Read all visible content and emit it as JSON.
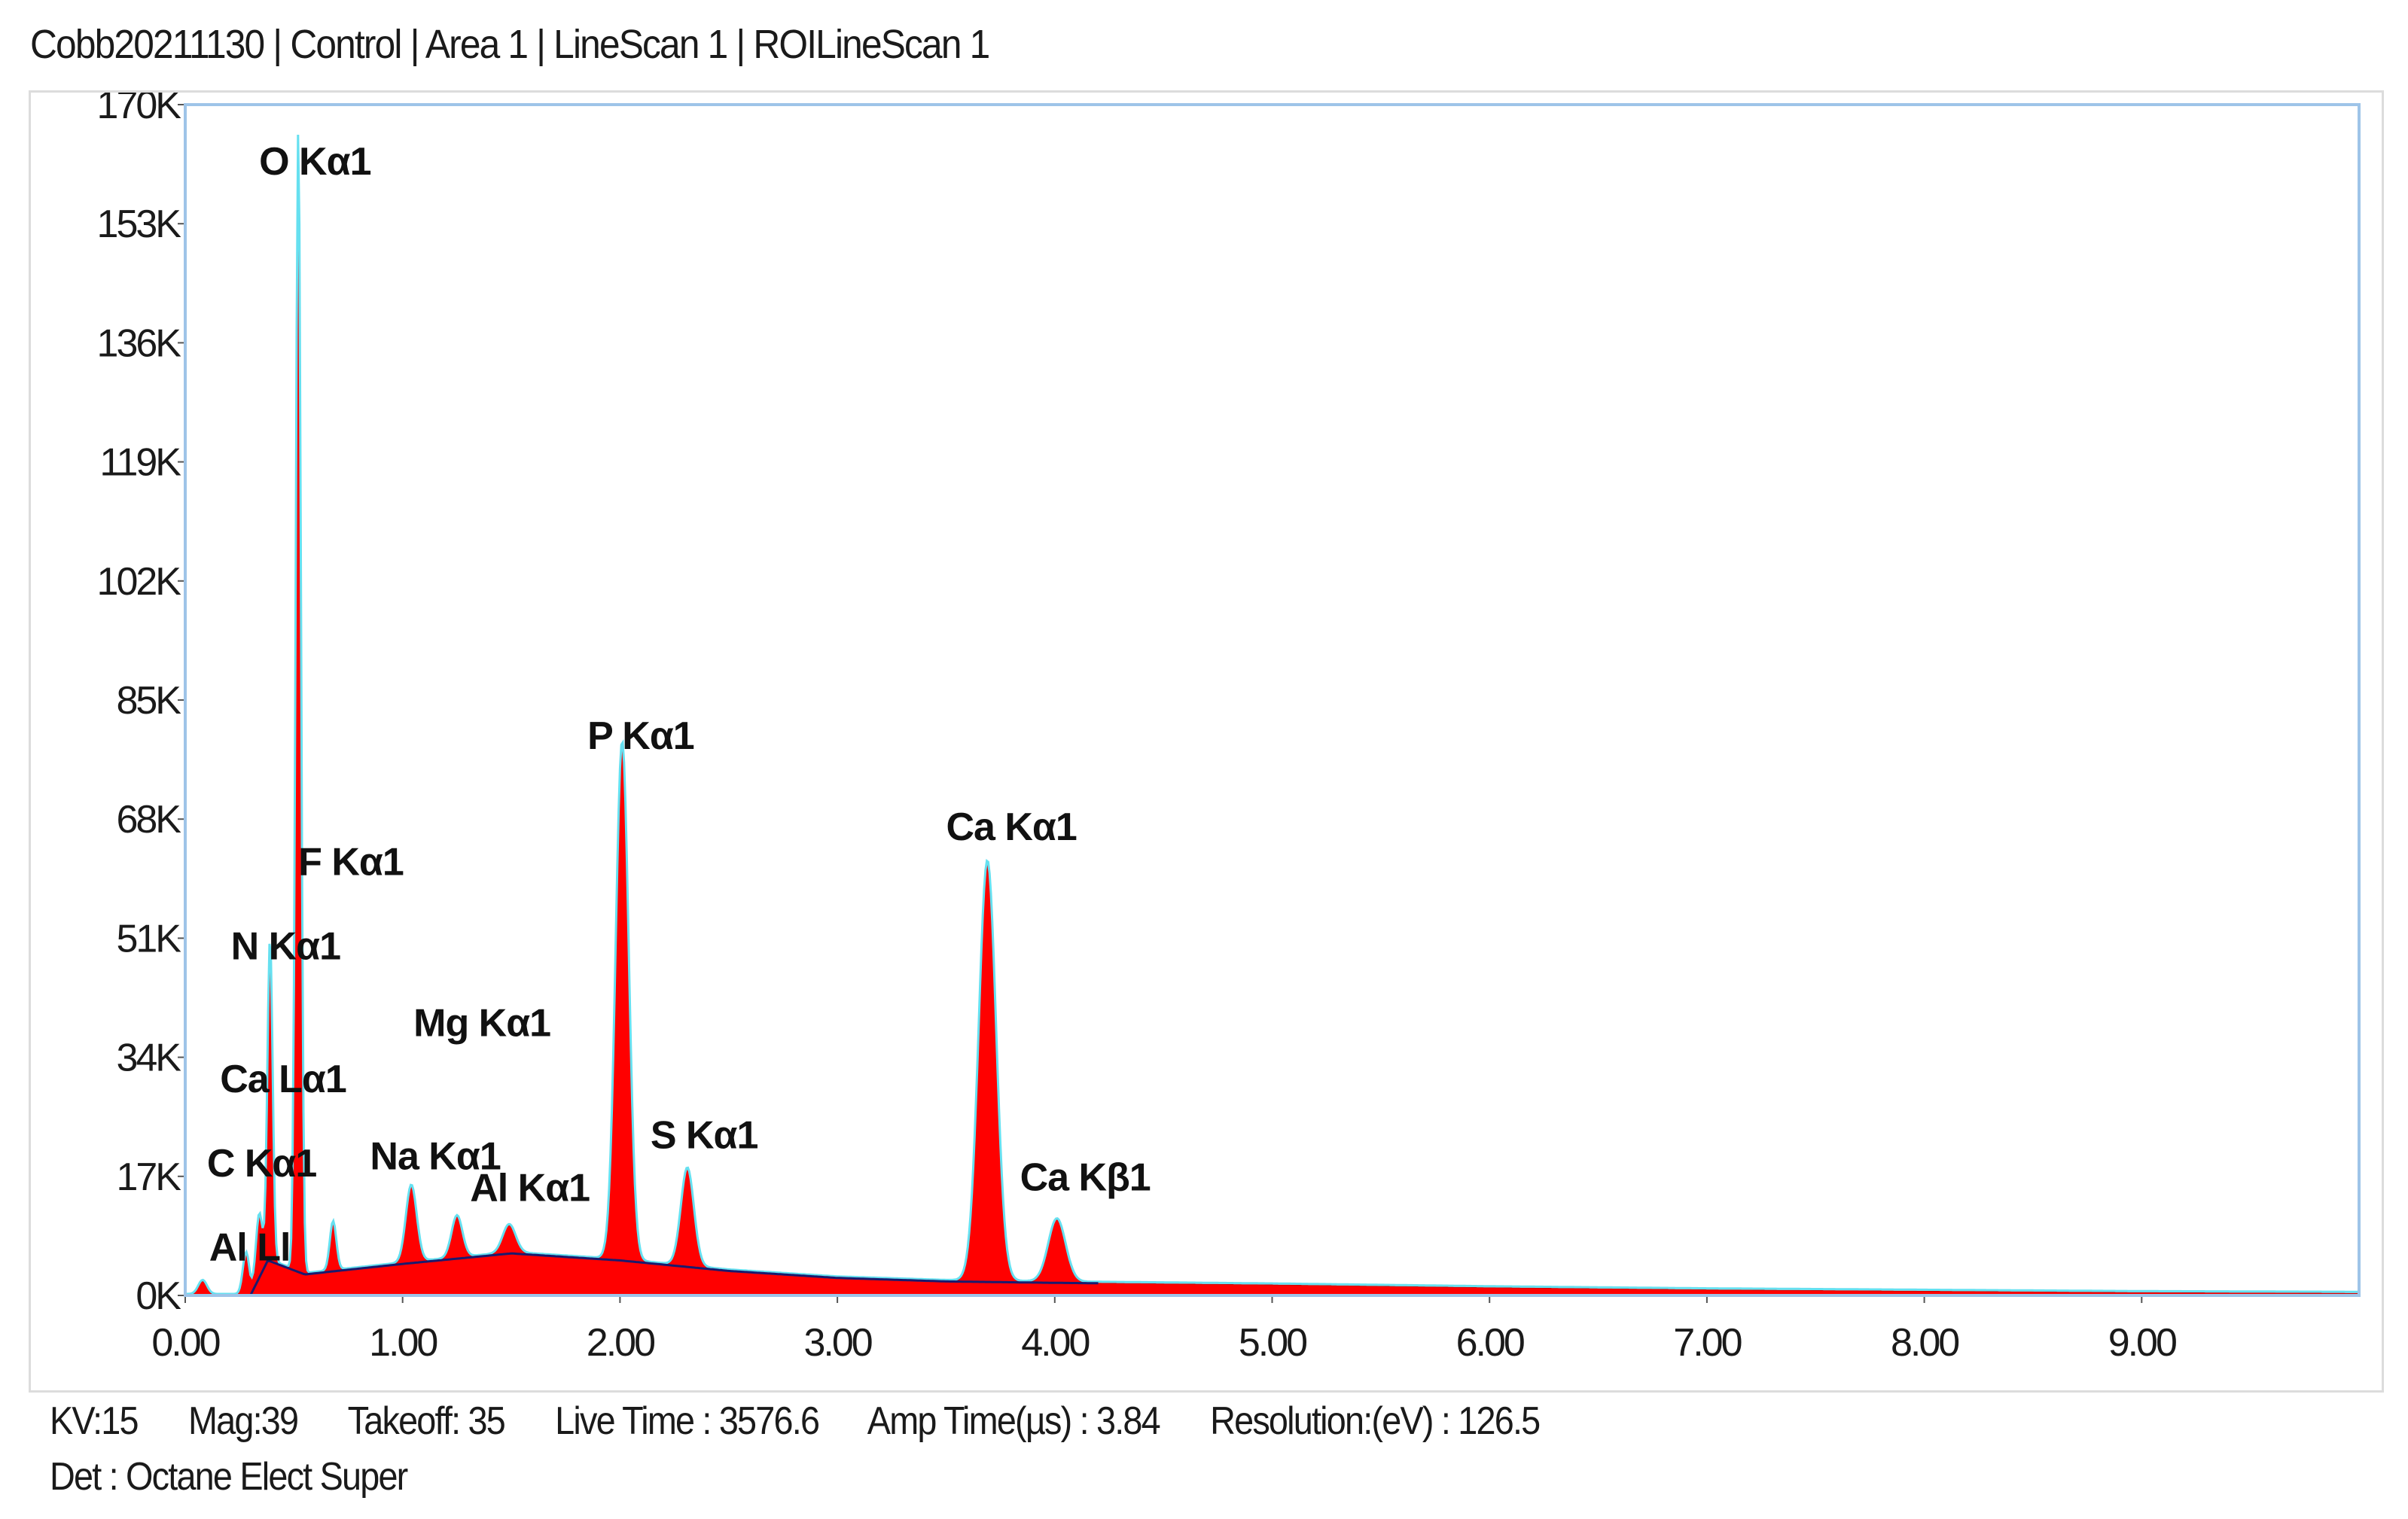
{
  "title": "Cobb20211130 | Control | Area 1 | LineScan 1 |  ROILineScan 1",
  "footer": {
    "line1": "KV:15      Mag:39      Takeoff: 35      Live Time : 3576.6      Amp Time(µs) : 3.84      Resolution:(eV) : 126.5",
    "line2": "Det : Octane Elect Super"
  },
  "chart_data": {
    "type": "area",
    "xlabel": "",
    "ylabel": "",
    "xlim": [
      0,
      10
    ],
    "ylim": [
      0,
      170000
    ],
    "x_ticks": [
      "0.00",
      "1.00",
      "2.00",
      "3.00",
      "4.00",
      "5.00",
      "6.00",
      "7.00",
      "8.00",
      "9.00"
    ],
    "y_ticks": [
      "0K",
      "17K",
      "34K",
      "51K",
      "68K",
      "85K",
      "102K",
      "119K",
      "136K",
      "153K",
      "170K"
    ],
    "colors": {
      "fill": "#ff0000",
      "fill_edge": "#cc0000",
      "outline": "#66e0f0",
      "background_fit": "#1a1a6e",
      "frame": "#9ec4e8"
    },
    "spectrum": {
      "baseline": [
        [
          0.0,
          0
        ],
        [
          0.3,
          0
        ],
        [
          0.38,
          5000
        ],
        [
          0.55,
          3000
        ],
        [
          1.0,
          4500
        ],
        [
          1.5,
          6000
        ],
        [
          2.0,
          5000
        ],
        [
          2.5,
          3500
        ],
        [
          3.0,
          2500
        ],
        [
          3.5,
          2000
        ],
        [
          4.0,
          1800
        ],
        [
          5.0,
          1500
        ],
        [
          6.0,
          1100
        ],
        [
          7.0,
          800
        ],
        [
          8.0,
          600
        ],
        [
          9.0,
          400
        ],
        [
          10.0,
          300
        ]
      ],
      "peaks": [
        {
          "label": "Al Ll",
          "x": 0.08,
          "y": 2000,
          "w": 0.02
        },
        {
          "label": "C  Kα1",
          "x": 0.28,
          "y": 6000,
          "w": 0.015
        },
        {
          "label": "Ca Lα1",
          "x": 0.34,
          "y": 9000,
          "w": 0.015
        },
        {
          "label": "N  Kα1",
          "x": 0.39,
          "y": 46000,
          "w": 0.012
        },
        {
          "label": "O  Kα1",
          "x": 0.52,
          "y": 163000,
          "w": 0.012
        },
        {
          "label": "F  Kα1",
          "x": 0.68,
          "y": 7000,
          "w": 0.015
        },
        {
          "label": "Na Kα1",
          "x": 1.04,
          "y": 11000,
          "w": 0.025
        },
        {
          "label": "Mg Kα1",
          "x": 1.25,
          "y": 6000,
          "w": 0.025
        },
        {
          "label": "Al Kα1",
          "x": 1.49,
          "y": 4000,
          "w": 0.03
        },
        {
          "label": "P  Kα1",
          "x": 2.01,
          "y": 74000,
          "w": 0.03
        },
        {
          "label": "S  Kα1",
          "x": 2.31,
          "y": 14000,
          "w": 0.03
        },
        {
          "label": "Ca Kα1",
          "x": 3.69,
          "y": 60000,
          "w": 0.04
        },
        {
          "label": "Ca Kβ1",
          "x": 4.01,
          "y": 9000,
          "w": 0.04
        }
      ]
    },
    "peak_labels": [
      {
        "text": "O  Kα1",
        "x": 0.34,
        "y": 160000
      },
      {
        "text": "P  Kα1",
        "x": 1.85,
        "y": 78000
      },
      {
        "text": "Ca Kα1",
        "x": 3.5,
        "y": 65000
      },
      {
        "text": "F  Kα1",
        "x": 0.52,
        "y": 60000
      },
      {
        "text": "N  Kα1",
        "x": 0.21,
        "y": 48000
      },
      {
        "text": "Mg Kα1",
        "x": 1.05,
        "y": 37000
      },
      {
        "text": "Ca Lα1",
        "x": 0.16,
        "y": 29000
      },
      {
        "text": "Na Kα1",
        "x": 0.85,
        "y": 18000
      },
      {
        "text": "S  Kα1",
        "x": 2.14,
        "y": 21000
      },
      {
        "text": "C  Kα1",
        "x": 0.1,
        "y": 17000
      },
      {
        "text": "Al Kα1",
        "x": 1.31,
        "y": 13500
      },
      {
        "text": "Ca Kβ1",
        "x": 3.84,
        "y": 15000
      },
      {
        "text": "Al Ll",
        "x": 0.11,
        "y": 5000
      }
    ]
  }
}
